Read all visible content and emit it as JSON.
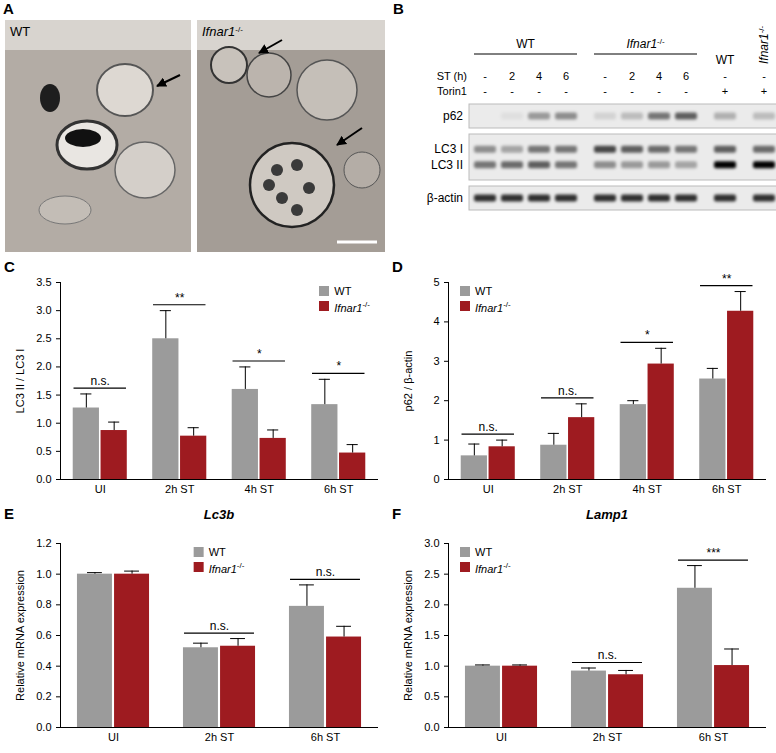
{
  "panel_a": {
    "panel": "A",
    "images": [
      {
        "label": "WT"
      },
      {
        "label": "Ifnar1-/-"
      }
    ]
  },
  "panel_b": {
    "panel": "B",
    "lane_groups": [
      "WT",
      "WT",
      "WT",
      "WT",
      "Ifnar1-/-",
      "Ifnar1-/-",
      "Ifnar1-/-",
      "Ifnar1-/-",
      "WT",
      "Ifnar1-/-"
    ],
    "rows": [
      {
        "label": "ST (h)",
        "values": [
          "-",
          "2",
          "4",
          "6",
          "-",
          "2",
          "4",
          "6",
          "-",
          "-"
        ]
      },
      {
        "label": "Torin1",
        "values": [
          "-",
          "-",
          "-",
          "-",
          "-",
          "-",
          "-",
          "-",
          "+",
          "+"
        ]
      }
    ],
    "blots": [
      {
        "bands": [
          {
            "label": "p62",
            "intensity": [
              0,
              0.05,
              0.35,
              0.4,
              0.1,
              0.2,
              0.5,
              0.6,
              0.25,
              0.2
            ]
          }
        ]
      },
      {
        "bands": [
          {
            "label": "LC3 I",
            "intensity": [
              0.4,
              0.3,
              0.5,
              0.5,
              0.7,
              0.6,
              0.55,
              0.5,
              0.6,
              0.55
            ]
          },
          {
            "label": "LC3 II",
            "intensity": [
              0.5,
              0.55,
              0.6,
              0.5,
              0.4,
              0.35,
              0.35,
              0.3,
              1.0,
              1.0
            ]
          }
        ]
      },
      {
        "bands": [
          {
            "label": "β-actin",
            "intensity": [
              0.8,
              0.8,
              0.8,
              0.8,
              0.8,
              0.8,
              0.8,
              0.8,
              0.8,
              0.8
            ]
          }
        ]
      }
    ]
  },
  "chart_data": [
    {
      "panel": "C",
      "type": "bar",
      "y_label": "LC3 II / LC3 I",
      "categories": [
        "UI",
        "2h ST",
        "4h ST",
        "6h ST"
      ],
      "series": [
        {
          "name": "WT",
          "color": "#9b9b9b",
          "values": [
            1.27,
            2.5,
            1.6,
            1.33
          ],
          "errors": [
            0.25,
            0.5,
            0.4,
            0.45
          ]
        },
        {
          "name": "Ifnar1-/-",
          "color": "#9e1b20",
          "values": [
            0.87,
            0.77,
            0.73,
            0.47
          ],
          "errors": [
            0.15,
            0.15,
            0.15,
            0.15
          ]
        }
      ],
      "significance": [
        "n.s.",
        "**",
        "*",
        "*"
      ],
      "ylim": [
        0,
        3.5
      ],
      "yticks": [
        {
          "value": 0,
          "label": "0.0"
        },
        0.5,
        {
          "value": 1,
          "label": "1.0"
        },
        1.5,
        {
          "value": 2,
          "label": "2.0"
        },
        2.5,
        {
          "value": 3,
          "label": "3.0"
        },
        3.5
      ],
      "legend": "top-right"
    },
    {
      "panel": "D",
      "type": "bar",
      "y_label": "p62 / β-actin",
      "categories": [
        "UI",
        "2h ST",
        "4h ST",
        "6h ST"
      ],
      "series": [
        {
          "name": "WT",
          "color": "#9b9b9b",
          "values": [
            0.6,
            0.87,
            1.9,
            2.55
          ],
          "errors": [
            0.3,
            0.3,
            0.1,
            0.27
          ]
        },
        {
          "name": "Ifnar1-/-",
          "color": "#9e1b20",
          "values": [
            0.83,
            1.57,
            2.93,
            4.27
          ],
          "errors": [
            0.17,
            0.35,
            0.4,
            0.5
          ]
        }
      ],
      "significance": [
        "n.s.",
        "n.s.",
        "*",
        "**"
      ],
      "ylim": [
        0,
        5
      ],
      "yticks": [
        0,
        1,
        2,
        3,
        4,
        5
      ],
      "legend": "top-left"
    },
    {
      "panel": "E",
      "type": "bar",
      "title": "Lc3b",
      "y_label": "Relative mRNA expression",
      "categories": [
        "UI",
        "2h ST",
        "6h ST"
      ],
      "series": [
        {
          "name": "WT",
          "color": "#9b9b9b",
          "values": [
            1.0,
            0.52,
            0.79
          ],
          "errors": [
            0.01,
            0.03,
            0.14
          ]
        },
        {
          "name": "Ifnar1-/-",
          "color": "#9e1b20",
          "values": [
            1.0,
            0.53,
            0.59
          ],
          "errors": [
            0.02,
            0.05,
            0.07
          ]
        }
      ],
      "significance": [
        null,
        "n.s.",
        "n.s."
      ],
      "ylim": [
        0,
        1.2
      ],
      "yticks": [
        {
          "value": 0,
          "label": "0.0"
        },
        0.2,
        0.4,
        0.6,
        0.8,
        {
          "value": 1,
          "label": "1.0"
        },
        1.2
      ],
      "legend": "top"
    },
    {
      "panel": "F",
      "type": "bar",
      "title": "Lamp1",
      "y_label": "Relative mRNA expression",
      "categories": [
        "UI",
        "2h ST",
        "6h ST"
      ],
      "series": [
        {
          "name": "WT",
          "color": "#9b9b9b",
          "values": [
            1.0,
            0.92,
            2.27
          ],
          "errors": [
            0.02,
            0.05,
            0.37
          ]
        },
        {
          "name": "Ifnar1-/-",
          "color": "#9e1b20",
          "values": [
            1.0,
            0.86,
            1.01
          ],
          "errors": [
            0.02,
            0.07,
            0.27
          ]
        }
      ],
      "significance": [
        null,
        "n.s.",
        "***"
      ],
      "ylim": [
        0,
        3
      ],
      "yticks": [
        {
          "value": 0,
          "label": "0.0"
        },
        0.5,
        {
          "value": 1,
          "label": "1.0"
        },
        1.5,
        {
          "value": 2,
          "label": "2.0"
        },
        2.5,
        {
          "value": 3,
          "label": "3.0"
        }
      ],
      "legend": "top-left"
    }
  ]
}
